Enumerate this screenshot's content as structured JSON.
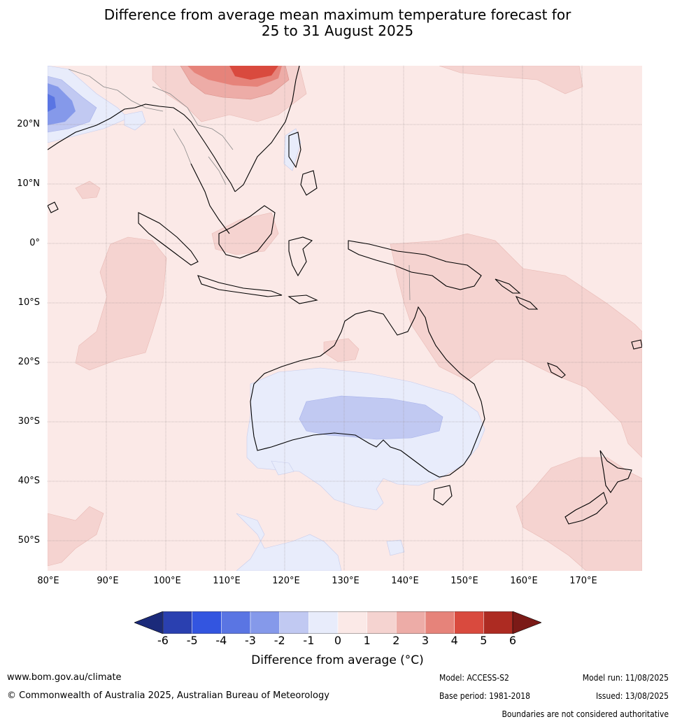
{
  "title": {
    "line1": "Difference from average mean maximum temperature forecast for",
    "line2": "25 to 31 August 2025"
  },
  "map": {
    "lat_labels": [
      "20°N",
      "10°N",
      "0°",
      "10°S",
      "20°S",
      "30°S",
      "40°S",
      "50°S"
    ],
    "lon_labels": [
      "80°E",
      "90°E",
      "100°E",
      "110°E",
      "120°E",
      "130°E",
      "140°E",
      "150°E",
      "160°E",
      "170°E"
    ],
    "ocean_fill_color": "#fbe9e7",
    "coast_color": "#000000",
    "border_color": "#888888"
  },
  "colorbar": {
    "ticks": [
      "-6",
      "-5",
      "-4",
      "-3",
      "-2",
      "-1",
      "0",
      "1",
      "2",
      "3",
      "4",
      "5",
      "6"
    ],
    "colors": {
      "below_min": "#1b2a7a",
      "bins": [
        "#2a40b0",
        "#3355e0",
        "#5a75e3",
        "#8599ea",
        "#c1c9f2",
        "#e8ecfb",
        "#fbe9e7",
        "#f5d3d0",
        "#edaca7",
        "#e6837a",
        "#d94a3e",
        "#ad2b22"
      ],
      "above_max": "#7b1a17"
    },
    "label": "Difference from average (°C)"
  },
  "footer": {
    "website": "www.bom.gov.au/climate",
    "copyright": "© Commonwealth of Australia 2025, Australian Bureau of Meteorology",
    "model": "Model: ACCESS-S2",
    "model_run": "Model run: 11/08/2025",
    "base_period": "Base period: 1981-2018",
    "issued": "Issued: 13/08/2025",
    "disclaimer": "Boundaries are not considered authoritative"
  }
}
